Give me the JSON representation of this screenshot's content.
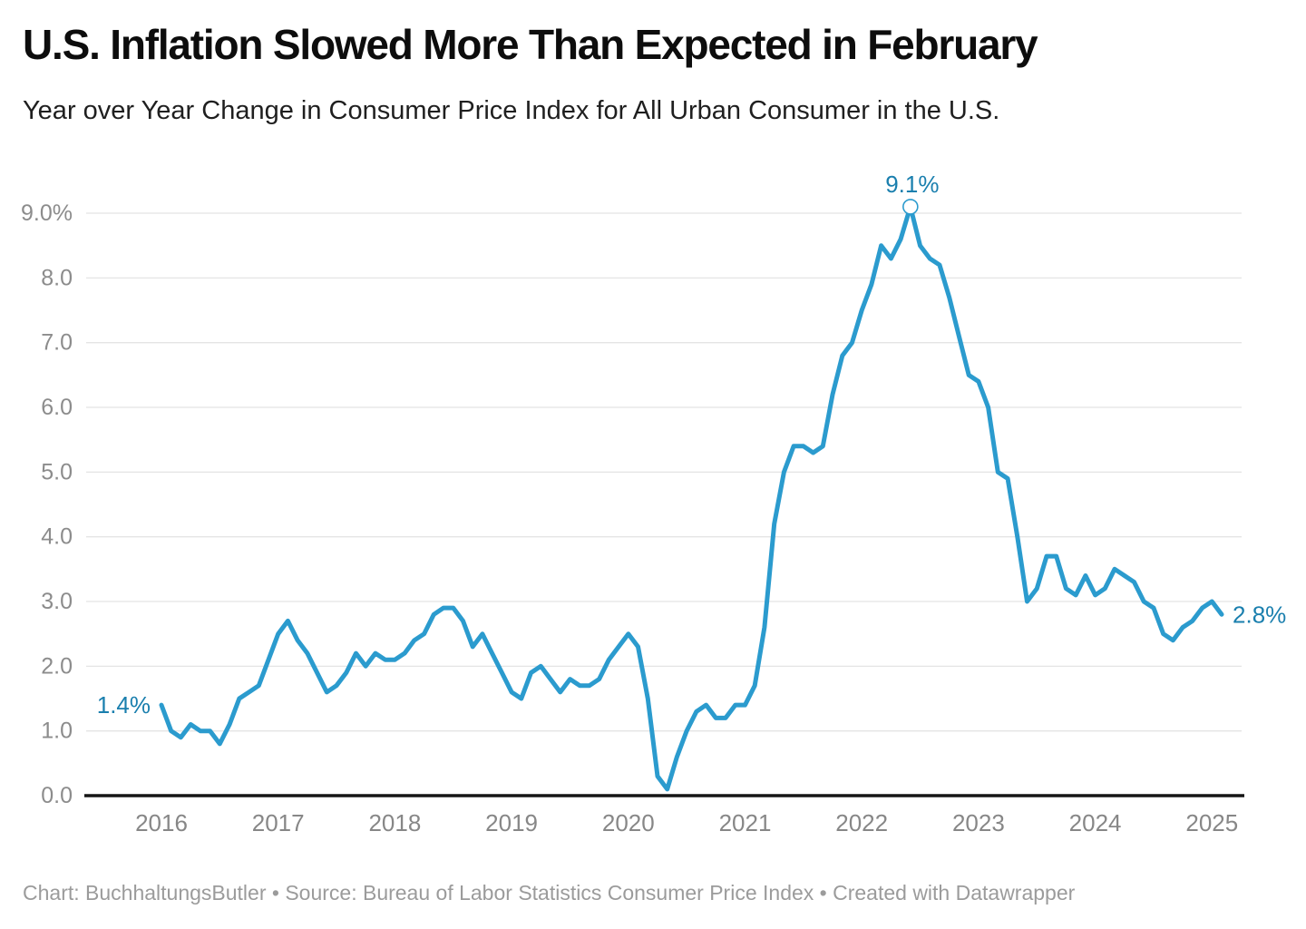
{
  "header": {
    "title": "U.S. Inflation Slowed More Than Expected in February",
    "subtitle": "Year over Year Change in Consumer Price Index for All Urban Consumer in the U.S."
  },
  "footer": {
    "text": "Chart: BuchhaltungsButler • Source: Bureau of Labor Statistics Consumer Price Index • Created with Datawrapper"
  },
  "chart_data": {
    "type": "line",
    "title": "U.S. Inflation Slowed More Than Expected in February",
    "subtitle": "Year over Year Change in Consumer Price Index for All Urban Consumer in the U.S.",
    "unit": "%",
    "x_start": "2016-01",
    "x_end": "2025-02",
    "x_tick_labels": [
      "2016",
      "2017",
      "2018",
      "2019",
      "2020",
      "2021",
      "2022",
      "2023",
      "2024",
      "2025"
    ],
    "y_ticks": [
      0,
      1,
      2,
      3,
      4,
      5,
      6,
      7,
      8,
      9
    ],
    "y_tick_labels": [
      "0.0",
      "1.0",
      "2.0",
      "3.0",
      "4.0",
      "5.0",
      "6.0",
      "7.0",
      "8.0",
      "9.0%"
    ],
    "ylim": [
      0,
      9.6
    ],
    "grid": "horizontal",
    "legend": "none",
    "series": [
      {
        "name": "CPI year-over-year change (%)",
        "values": [
          1.4,
          1.0,
          0.9,
          1.1,
          1.0,
          1.0,
          0.8,
          1.1,
          1.5,
          1.6,
          1.7,
          2.1,
          2.5,
          2.7,
          2.4,
          2.2,
          1.9,
          1.6,
          1.7,
          1.9,
          2.2,
          2.0,
          2.2,
          2.1,
          2.1,
          2.2,
          2.4,
          2.5,
          2.8,
          2.9,
          2.9,
          2.7,
          2.3,
          2.5,
          2.2,
          1.9,
          1.6,
          1.5,
          1.9,
          2.0,
          1.8,
          1.6,
          1.8,
          1.7,
          1.7,
          1.8,
          2.1,
          2.3,
          2.5,
          2.3,
          1.5,
          0.3,
          0.1,
          0.6,
          1.0,
          1.3,
          1.4,
          1.2,
          1.2,
          1.4,
          1.4,
          1.7,
          2.6,
          4.2,
          5.0,
          5.4,
          5.4,
          5.3,
          5.4,
          6.2,
          6.8,
          7.0,
          7.5,
          7.9,
          8.5,
          8.3,
          8.6,
          9.1,
          8.5,
          8.3,
          8.2,
          7.7,
          7.1,
          6.5,
          6.4,
          6.0,
          5.0,
          4.9,
          4.0,
          3.0,
          3.2,
          3.7,
          3.7,
          3.2,
          3.1,
          3.4,
          3.1,
          3.2,
          3.5,
          3.4,
          3.3,
          3.0,
          2.9,
          2.5,
          2.4,
          2.6,
          2.7,
          2.9,
          3.0,
          2.8
        ]
      }
    ],
    "annotations": [
      {
        "label": "1.4%",
        "month_index": 0,
        "value": 1.4,
        "position": "left"
      },
      {
        "label": "9.1%",
        "month_index": 77,
        "value": 9.1,
        "position": "top",
        "marker": "open-circle"
      },
      {
        "label": "2.8%",
        "month_index": 109,
        "value": 2.8,
        "position": "right"
      }
    ],
    "colors": {
      "line": "#2b9bce",
      "annotation_text": "#1a7fae",
      "grid": "#e4e4e4",
      "axis_line": "#151515",
      "tick_text": "#8c8c8c",
      "year_text": "#878787"
    }
  }
}
